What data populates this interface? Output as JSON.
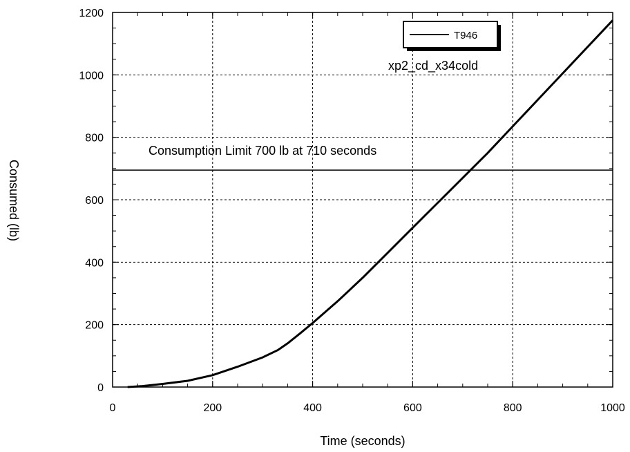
{
  "chart_data": {
    "type": "line",
    "title": "",
    "xlabel": "Time (seconds)",
    "ylabel": "Consumed (lb)",
    "xlim": [
      0,
      1000
    ],
    "ylim": [
      0,
      1200
    ],
    "xticks": [
      0,
      200,
      400,
      600,
      800,
      1000
    ],
    "yticks": [
      0,
      200,
      400,
      600,
      800,
      1000,
      1200
    ],
    "grid": true,
    "legend_position": "top-right",
    "series": [
      {
        "name": "T946",
        "color": "#000000",
        "x": [
          30,
          60,
          100,
          150,
          200,
          250,
          300,
          330,
          350,
          375,
          400,
          450,
          500,
          550,
          600,
          650,
          700,
          750,
          800,
          850,
          900,
          950,
          1000
        ],
        "y": [
          0,
          3,
          10,
          20,
          38,
          65,
          95,
          118,
          140,
          172,
          205,
          275,
          350,
          430,
          510,
          590,
          670,
          750,
          835,
          920,
          1005,
          1090,
          1175
        ]
      }
    ],
    "reference_line": {
      "y": 695,
      "color": "#000000"
    },
    "annotations": {
      "run_name": "xp2_cd_x34cold",
      "limit_text": "Consumption Limit 700 lb at 710 seconds"
    }
  }
}
